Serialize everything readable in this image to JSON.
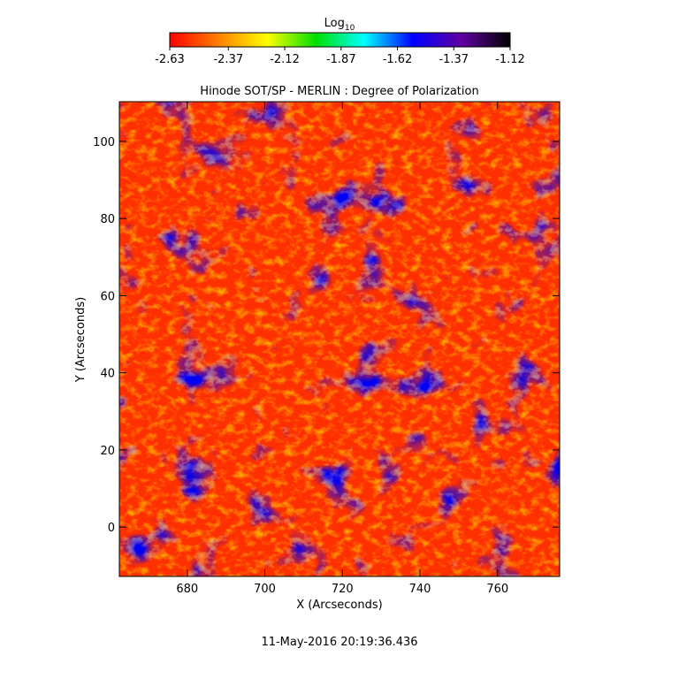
{
  "chart_data": {
    "type": "heatmap",
    "title": "Hinode SOT/SP - MERLIN : Degree of Polarization",
    "x_label": "X (Arcseconds)",
    "y_label": "Y (Arcseconds)",
    "xlim": [
      662.5,
      776
    ],
    "xticks": [
      680,
      700,
      720,
      740,
      760
    ],
    "ylim": [
      -12.8,
      110.3
    ],
    "yticks": [
      0,
      20,
      40,
      60,
      80,
      100
    ],
    "colorbar": {
      "label": "Log",
      "label_sub": "10",
      "clim": [
        -2.63,
        -1.12
      ],
      "ticks": [
        -2.63,
        -2.37,
        -2.12,
        -1.87,
        -1.62,
        -1.37,
        -1.12
      ],
      "colors": [
        "#ff0000",
        "#ff8000",
        "#ffff00",
        "#00e000",
        "#00ffff",
        "#0000ff",
        "#6000a0",
        "#000000"
      ]
    },
    "timestamp": "11-May-2016 20:19:36.436"
  }
}
